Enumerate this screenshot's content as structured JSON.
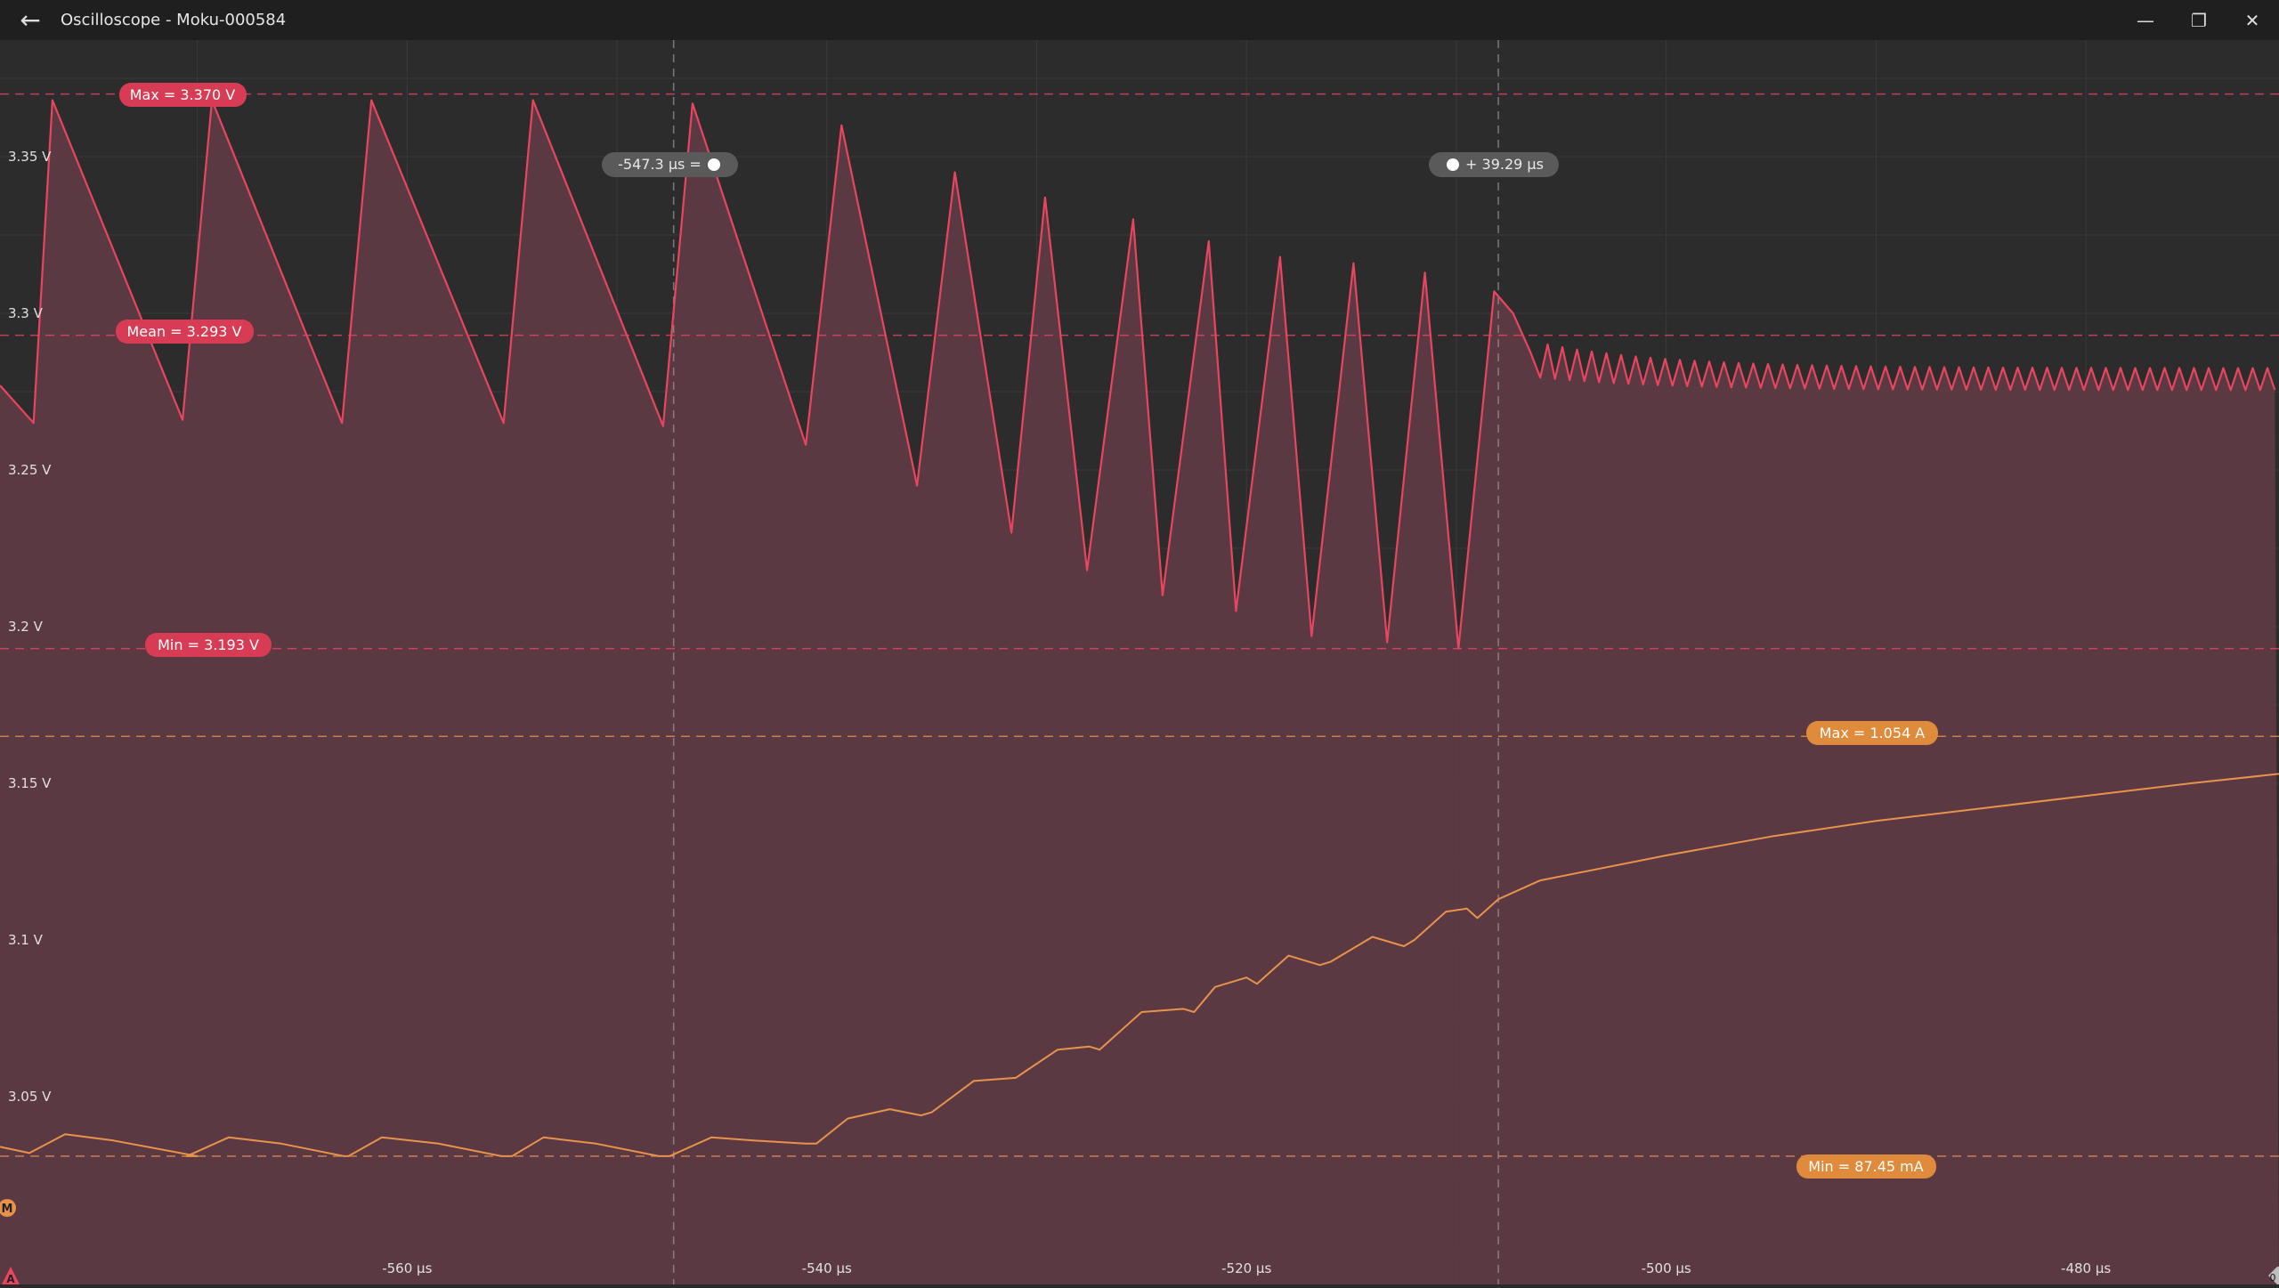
{
  "window": {
    "title": "Oscilloscope - Moku-000584",
    "back_icon": "arrow-left-icon",
    "minimize_icon": "minimize-icon",
    "restore_icon": "restore-icon",
    "close_icon": "close-icon"
  },
  "cursors": {
    "left_label": "-547.3 µs =",
    "right_label": "+ 39.29 µs"
  },
  "measurements": {
    "ch_a": {
      "max": "Max = 3.370 V",
      "mean": "Mean = 3.293 V",
      "min": "Min = 3.193 V"
    },
    "ch_m": {
      "max": "Max = 1.054 A",
      "min": "Min = 87.45 mA"
    }
  },
  "markers": {
    "channel_a": "A",
    "math": "M",
    "trigger": "0"
  },
  "colors": {
    "channel_a": "#e8455f",
    "channel_m": "#e8924a",
    "background": "#2c2c2c",
    "fill": "#5e3a45"
  },
  "chart_data": {
    "type": "line",
    "y_ticks": [
      "3.35 V",
      "3.3 V",
      "3.25 V",
      "3.2 V",
      "3.15 V",
      "3.1 V",
      "3.05 V"
    ],
    "y_tick_values": [
      3.35,
      3.3,
      3.25,
      3.2,
      3.15,
      3.1,
      3.05
    ],
    "x_ticks": [
      "-560 µs",
      "-540 µs",
      "-520 µs",
      "-500 µs",
      "-480 µs"
    ],
    "x_tick_values": [
      -560,
      -540,
      -520,
      -500,
      -480
    ],
    "xlim": [
      -579.4,
      -470.8
    ],
    "ylim": [
      3.0,
      3.38
    ],
    "grid": true,
    "series": [
      {
        "name": "A",
        "peaks_x": [
          -576.9,
          -569.3,
          -561.7,
          -554.0,
          -546.4,
          -539.3,
          -533.9,
          -529.6,
          -525.4,
          -521.8,
          -518.4,
          -514.9,
          -511.5,
          -508.2
        ],
        "peaks_y": [
          3.368,
          3.368,
          3.368,
          3.368,
          3.367,
          3.36,
          3.345,
          3.337,
          3.33,
          3.323,
          3.318,
          3.316,
          3.313,
          3.307
        ],
        "troughs_x": [
          -577.8,
          -570.7,
          -563.1,
          -555.4,
          -547.8,
          -541.0,
          -535.7,
          -531.2,
          -527.6,
          -524.0,
          -520.5,
          -516.9,
          -513.3,
          -509.9
        ],
        "troughs_y": [
          3.265,
          3.266,
          3.265,
          3.265,
          3.264,
          3.258,
          3.245,
          3.23,
          3.218,
          3.21,
          3.205,
          3.197,
          3.195,
          3.193
        ],
        "settle_y": 3.279
      },
      {
        "name": "M",
        "x": [
          -579.4,
          -578.0,
          -576.3,
          -574.0,
          -570.0,
          -570.5,
          -568.5,
          -566.0,
          -563.0,
          -562.8,
          -561.2,
          -558.5,
          -555.5,
          -555.0,
          -553.5,
          -551.0,
          -548.0,
          -547.5,
          -545.5,
          -543.5,
          -541.0,
          -540.5,
          -539.0,
          -537.0,
          -535.5,
          -535.0,
          -533.0,
          -531.0,
          -531.0,
          -529.0,
          -527.5,
          -527.0,
          -525.0,
          -523.0,
          -522.5,
          -521.5,
          -520.0,
          -519.5,
          -518.0,
          -516.5,
          -516.0,
          -514.0,
          -512.5,
          -512.0,
          -510.5,
          -509.5,
          -509.0,
          -508.0,
          -506.0,
          -500.0,
          -495.0,
          -490.0,
          -485.0,
          -480.0,
          -475.0,
          -470.8
        ],
        "y": [
          3.034,
          3.032,
          3.038,
          3.036,
          3.031,
          3.031,
          3.037,
          3.035,
          3.031,
          3.031,
          3.037,
          3.035,
          3.031,
          3.031,
          3.037,
          3.035,
          3.031,
          3.031,
          3.037,
          3.036,
          3.035,
          3.035,
          3.043,
          3.046,
          3.044,
          3.045,
          3.055,
          3.056,
          3.056,
          3.065,
          3.066,
          3.065,
          3.077,
          3.078,
          3.077,
          3.085,
          3.088,
          3.086,
          3.095,
          3.092,
          3.093,
          3.101,
          3.098,
          3.1,
          3.109,
          3.11,
          3.107,
          3.113,
          3.119,
          3.127,
          3.133,
          3.138,
          3.142,
          3.146,
          3.15,
          3.153
        ]
      }
    ],
    "guides": {
      "a_max": 3.37,
      "a_mean": 3.293,
      "a_min": 3.193,
      "m_max": 3.165,
      "m_min": 3.031,
      "cursor_left_x": -547.3,
      "cursor_right_x": -508.0
    }
  }
}
